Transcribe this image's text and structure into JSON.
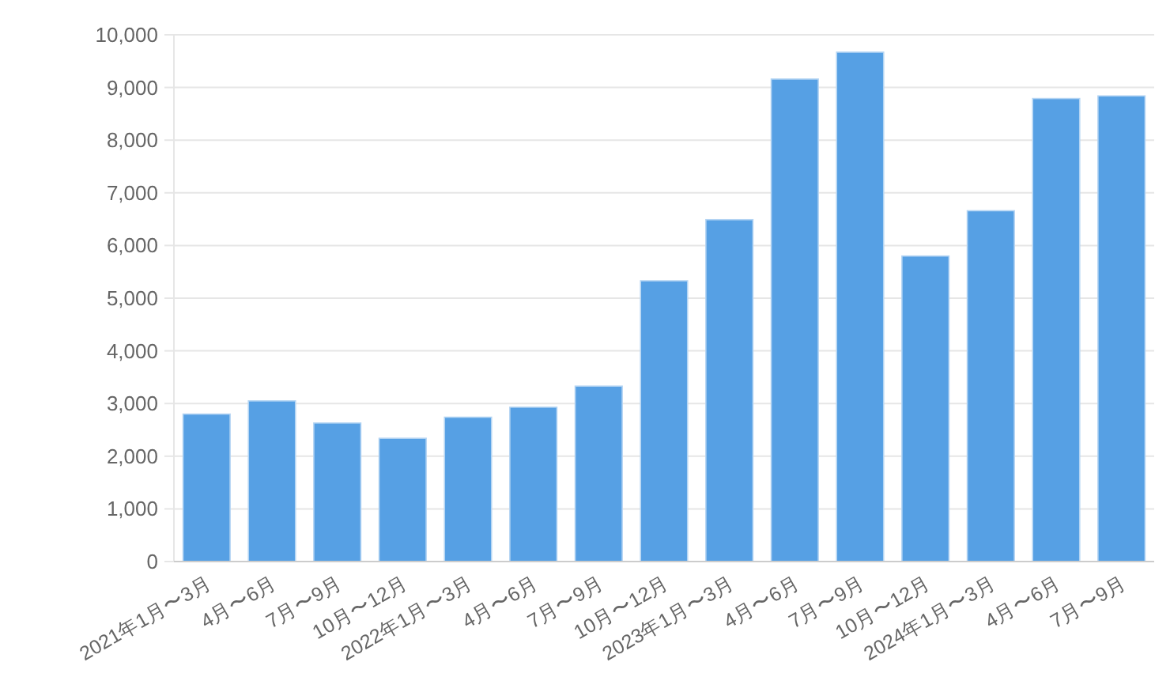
{
  "chart_data": {
    "type": "bar",
    "categories": [
      "2021年1月〜3月",
      "4月〜6月",
      "7月〜9月",
      "10月〜12月",
      "2022年1月〜3月",
      "4月〜6月",
      "7月〜9月",
      "10月〜12月",
      "2023年1月〜3月",
      "4月〜6月",
      "7月〜9月",
      "10月〜12月",
      "2024年1月〜3月",
      "4月〜6月",
      "7月〜9月"
    ],
    "values": [
      2800,
      3050,
      2630,
      2340,
      2740,
      2930,
      3330,
      5330,
      6490,
      9160,
      9670,
      5800,
      6660,
      8790,
      8840
    ],
    "color": "#56a0e4",
    "ylim": [
      0,
      10000
    ],
    "yticks": [
      {
        "value": 0,
        "label": "0"
      },
      {
        "value": 1000,
        "label": "1,000"
      },
      {
        "value": 2000,
        "label": "2,000"
      },
      {
        "value": 3000,
        "label": "3,000"
      },
      {
        "value": 4000,
        "label": "4,000"
      },
      {
        "value": 5000,
        "label": "5,000"
      },
      {
        "value": 6000,
        "label": "6,000"
      },
      {
        "value": 7000,
        "label": "7,000"
      },
      {
        "value": 8000,
        "label": "8,000"
      },
      {
        "value": 9000,
        "label": "9,000"
      },
      {
        "value": 10000,
        "label": "10,000"
      }
    ],
    "grid": "y"
  }
}
